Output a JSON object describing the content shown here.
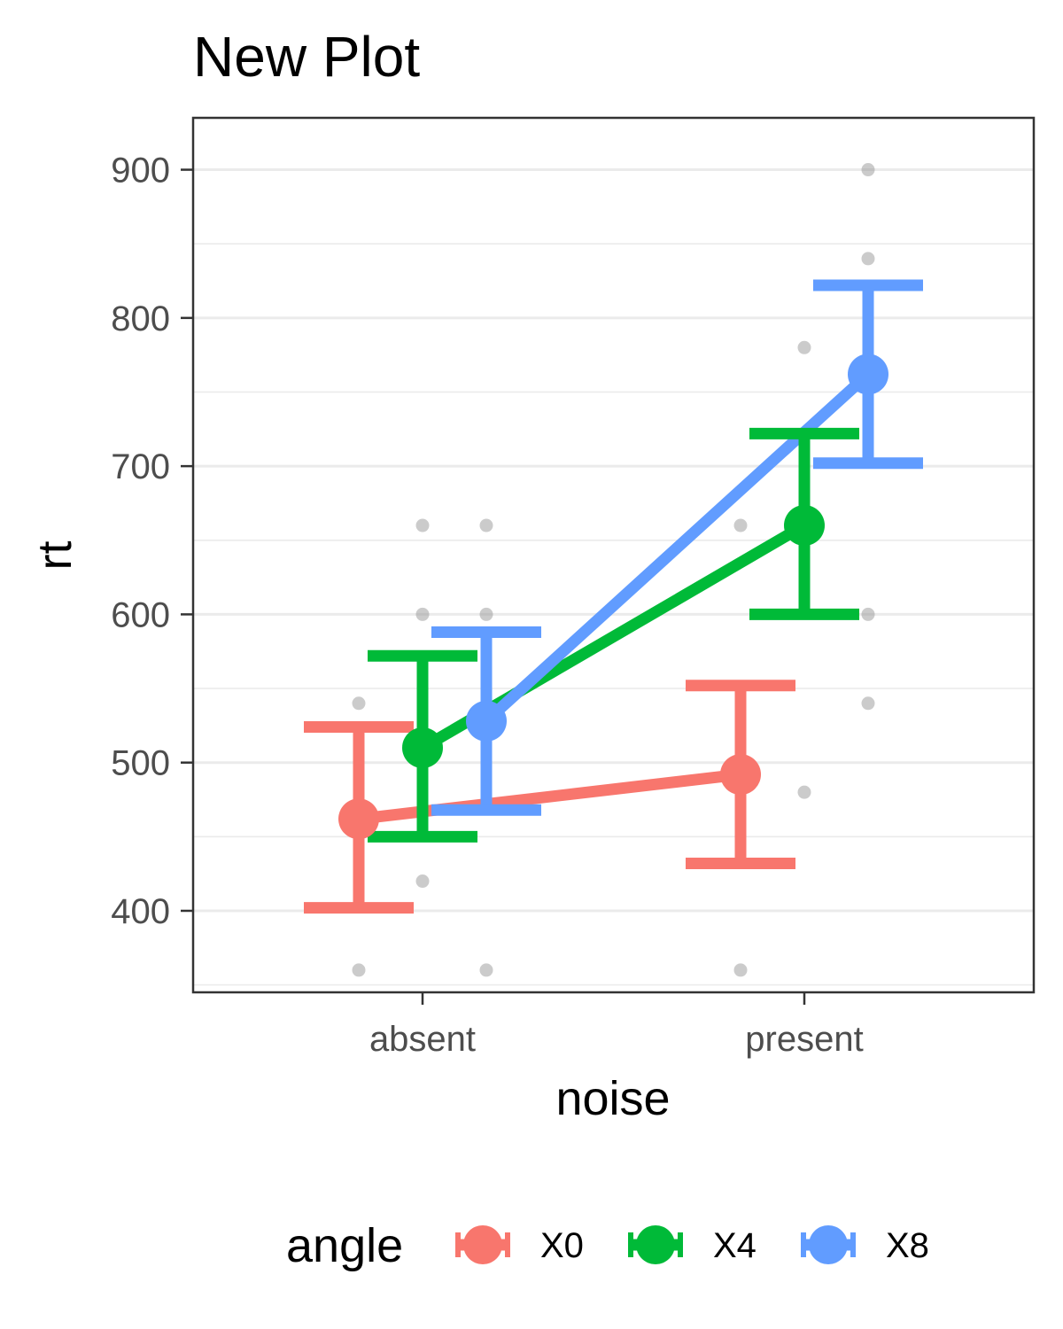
{
  "chart_data": {
    "type": "line",
    "title": "New Plot",
    "xlabel": "noise",
    "ylabel": "rt",
    "categories": [
      "absent",
      "present"
    ],
    "ylim": [
      345,
      935
    ],
    "y_ticks": [
      400,
      500,
      600,
      700,
      800,
      900
    ],
    "y_tick_labels": [
      "400",
      "500",
      "600",
      "700",
      "800",
      "900"
    ],
    "grid": true,
    "legend": {
      "title": "angle",
      "position": "bottom"
    },
    "series": [
      {
        "name": "X0",
        "color": "#F8766D",
        "means": [
          462,
          492
        ],
        "ci_low": [
          402,
          432
        ],
        "ci_high": [
          524,
          552
        ]
      },
      {
        "name": "X4",
        "color": "#00BA38",
        "means": [
          510,
          660
        ],
        "ci_low": [
          450,
          600
        ],
        "ci_high": [
          572,
          722
        ]
      },
      {
        "name": "X8",
        "color": "#619CFF",
        "means": [
          528,
          762
        ],
        "ci_low": [
          468,
          702
        ],
        "ci_high": [
          588,
          822
        ]
      }
    ],
    "raw_points": [
      {
        "series": "X0",
        "category": "absent",
        "values": [
          360,
          540
        ]
      },
      {
        "series": "X4",
        "category": "absent",
        "values": [
          420,
          600,
          660
        ]
      },
      {
        "series": "X8",
        "category": "absent",
        "values": [
          360,
          600,
          660
        ]
      },
      {
        "series": "X0",
        "category": "present",
        "values": [
          360,
          660
        ]
      },
      {
        "series": "X4",
        "category": "present",
        "values": [
          480,
          780
        ]
      },
      {
        "series": "X8",
        "category": "present",
        "values": [
          540,
          600,
          840,
          900
        ]
      }
    ]
  }
}
